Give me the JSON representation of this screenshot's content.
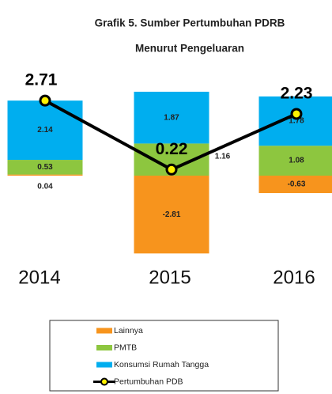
{
  "chart_data": {
    "type": "bar-line",
    "title": "Grafik 5. Sumber Pertumbuhan PDRB",
    "subtitle": "Menurut Pengeluaran",
    "categories": [
      "2014",
      "2015",
      "2016"
    ],
    "series": [
      {
        "name": "Lainnya",
        "color": "#F7941D",
        "type": "bar",
        "values": [
          0.04,
          -2.81,
          -0.63
        ]
      },
      {
        "name": "PMTB",
        "color": "#8DC63F",
        "type": "bar",
        "values": [
          0.53,
          1.16,
          1.08
        ]
      },
      {
        "name": "Konsumsi Rumah Tangga",
        "color": "#00AEEF",
        "type": "bar",
        "values": [
          2.14,
          1.87,
          1.78
        ]
      },
      {
        "name": "Pertumbuhan PDB",
        "color": "#000000",
        "marker_color": "#FFF200",
        "type": "line",
        "values": [
          2.71,
          0.22,
          2.23
        ]
      }
    ]
  }
}
